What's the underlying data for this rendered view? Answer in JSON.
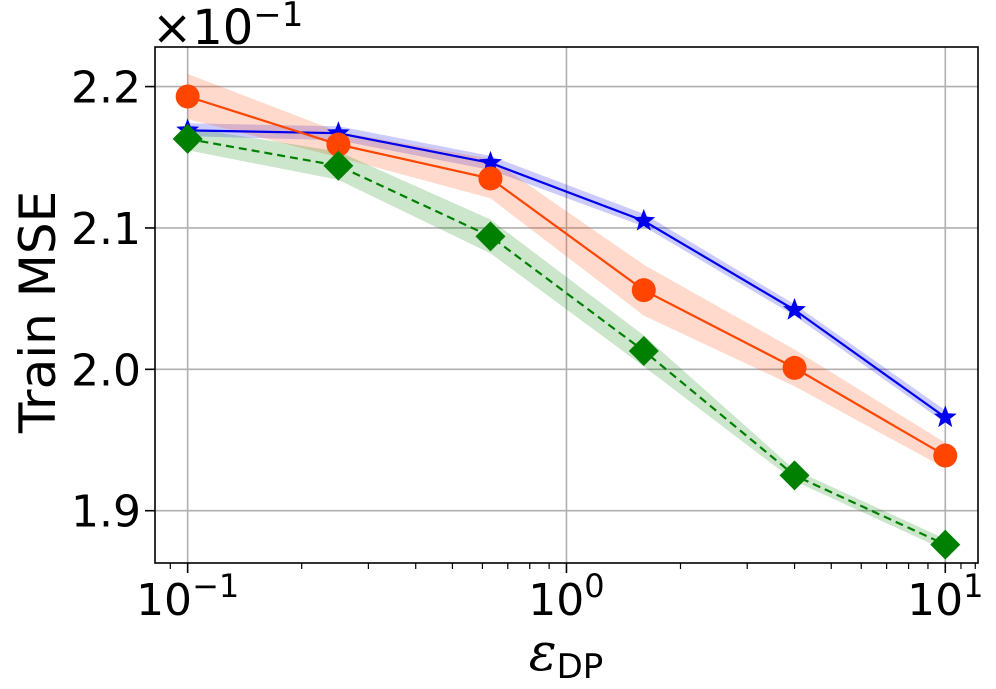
{
  "chart_data": {
    "type": "line",
    "xscale": "log",
    "xlim": [
      0.082,
      12.2
    ],
    "ylim": [
      1.863,
      2.228
    ],
    "grid": true,
    "xlabel": "ε",
    "xlabel_sub": "DP",
    "ylabel": "Train MSE",
    "y_offset_label": "×10",
    "y_offset_exp": "−1",
    "x_ticks": [
      {
        "value": 0.1,
        "base": "10",
        "exp": "−1"
      },
      {
        "value": 1,
        "base": "10",
        "exp": "0"
      },
      {
        "value": 10,
        "base": "10",
        "exp": "1"
      }
    ],
    "y_ticks": [
      {
        "value": 1.9,
        "label": "1.9"
      },
      {
        "value": 2.0,
        "label": "2.0"
      },
      {
        "value": 2.1,
        "label": "2.1"
      },
      {
        "value": 2.2,
        "label": "2.2"
      }
    ],
    "x": [
      0.1,
      0.25,
      0.63,
      1.6,
      4.0,
      10.0
    ],
    "series": [
      {
        "color": "#0000ee",
        "marker": "star",
        "linestyle": "solid",
        "values": [
          2.169,
          2.167,
          2.146,
          2.105,
          2.042,
          1.966
        ],
        "band_lower": [
          2.165,
          2.162,
          2.141,
          2.101,
          2.038,
          1.962
        ],
        "band_upper": [
          2.174,
          2.172,
          2.151,
          2.11,
          2.046,
          1.971
        ]
      },
      {
        "color": "#ff4500",
        "marker": "circle",
        "linestyle": "solid",
        "values": [
          2.193,
          2.159,
          2.135,
          2.056,
          2.001,
          1.939
        ],
        "band_lower": [
          2.177,
          2.15,
          2.121,
          2.038,
          1.988,
          1.93
        ],
        "band_upper": [
          2.209,
          2.168,
          2.149,
          2.074,
          2.014,
          1.948
        ]
      },
      {
        "color": "#008000",
        "marker": "diamond",
        "linestyle": "dashed",
        "values": [
          2.163,
          2.144,
          2.094,
          2.013,
          1.925,
          1.876
        ],
        "band_lower": [
          2.155,
          2.134,
          2.082,
          2.002,
          1.921,
          1.872
        ],
        "band_upper": [
          2.171,
          2.154,
          2.106,
          2.024,
          1.929,
          1.88
        ]
      }
    ]
  }
}
